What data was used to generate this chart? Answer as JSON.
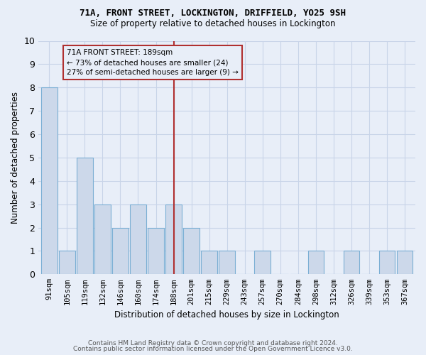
{
  "title1": "71A, FRONT STREET, LOCKINGTON, DRIFFIELD, YO25 9SH",
  "title2": "Size of property relative to detached houses in Lockington",
  "xlabel": "Distribution of detached houses by size in Lockington",
  "ylabel": "Number of detached properties",
  "categories": [
    "91sqm",
    "105sqm",
    "119sqm",
    "132sqm",
    "146sqm",
    "160sqm",
    "174sqm",
    "188sqm",
    "201sqm",
    "215sqm",
    "229sqm",
    "243sqm",
    "257sqm",
    "270sqm",
    "284sqm",
    "298sqm",
    "312sqm",
    "326sqm",
    "339sqm",
    "353sqm",
    "367sqm"
  ],
  "values": [
    8,
    1,
    5,
    3,
    2,
    3,
    2,
    3,
    2,
    1,
    1,
    0,
    1,
    0,
    0,
    1,
    0,
    1,
    0,
    1,
    1
  ],
  "bar_color": "#ccd8ea",
  "bar_edge_color": "#7bafd4",
  "highlight_index": 7,
  "highlight_line_color": "#b03030",
  "annotation_text": "71A FRONT STREET: 189sqm\n← 73% of detached houses are smaller (24)\n27% of semi-detached houses are larger (9) →",
  "annotation_box_color": "#b03030",
  "ylim": [
    0,
    10
  ],
  "yticks": [
    0,
    1,
    2,
    3,
    4,
    5,
    6,
    7,
    8,
    9,
    10
  ],
  "grid_color": "#c8d4e8",
  "background_color": "#e8eef8",
  "footer1": "Contains HM Land Registry data © Crown copyright and database right 2024.",
  "footer2": "Contains public sector information licensed under the Open Government Licence v3.0."
}
